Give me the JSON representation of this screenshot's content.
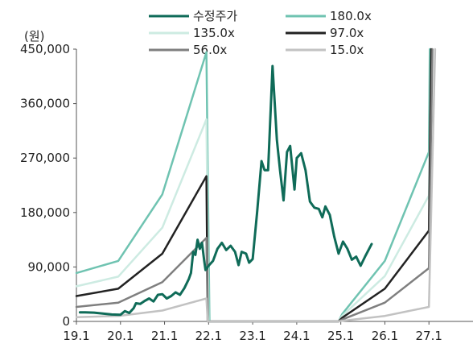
{
  "chart_data": {
    "type": "line",
    "unit_label": "(원)",
    "y_ticks": [
      "450,000",
      "360,000",
      "270,000",
      "180,000",
      "90,000",
      "0"
    ],
    "y_tick_values": [
      450000,
      360000,
      270000,
      180000,
      90000,
      0
    ],
    "x_ticks": [
      "19.1",
      "20.1",
      "21.1",
      "22.1",
      "23.1",
      "24.1",
      "25.1",
      "26.1",
      "27.1"
    ],
    "ylim": [
      0,
      450000
    ],
    "xlim": [
      19.0,
      28.0
    ],
    "legend_position": "top",
    "series": [
      {
        "name": "수정주가",
        "color": "#0f6b58",
        "width": 3,
        "points": [
          [
            19.08,
            15000
          ],
          [
            19.2,
            15000
          ],
          [
            19.4,
            14500
          ],
          [
            19.6,
            13000
          ],
          [
            19.8,
            11500
          ],
          [
            20.0,
            11000
          ],
          [
            20.1,
            17000
          ],
          [
            20.2,
            14000
          ],
          [
            20.3,
            22000
          ],
          [
            20.35,
            30000
          ],
          [
            20.45,
            29000
          ],
          [
            20.55,
            34000
          ],
          [
            20.65,
            38000
          ],
          [
            20.75,
            33000
          ],
          [
            20.85,
            44000
          ],
          [
            20.95,
            45000
          ],
          [
            21.05,
            38000
          ],
          [
            21.15,
            42000
          ],
          [
            21.25,
            48000
          ],
          [
            21.35,
            44000
          ],
          [
            21.45,
            55000
          ],
          [
            21.55,
            70000
          ],
          [
            21.6,
            80000
          ],
          [
            21.65,
            115000
          ],
          [
            21.7,
            110000
          ],
          [
            21.75,
            135000
          ],
          [
            21.8,
            120000
          ],
          [
            21.85,
            130000
          ],
          [
            21.9,
            100000
          ],
          [
            21.93,
            85000
          ],
          [
            22.0,
            92000
          ],
          [
            22.1,
            100000
          ],
          [
            22.2,
            120000
          ],
          [
            22.3,
            130000
          ],
          [
            22.4,
            118000
          ],
          [
            22.5,
            125000
          ],
          [
            22.6,
            115000
          ],
          [
            22.68,
            93000
          ],
          [
            22.75,
            115000
          ],
          [
            22.85,
            112000
          ],
          [
            22.92,
            97000
          ],
          [
            23.0,
            103000
          ],
          [
            23.1,
            180000
          ],
          [
            23.2,
            265000
          ],
          [
            23.27,
            250000
          ],
          [
            23.35,
            250000
          ],
          [
            23.45,
            422000
          ],
          [
            23.55,
            300000
          ],
          [
            23.62,
            250000
          ],
          [
            23.7,
            200000
          ],
          [
            23.78,
            280000
          ],
          [
            23.85,
            290000
          ],
          [
            23.95,
            218000
          ],
          [
            24.0,
            270000
          ],
          [
            24.1,
            278000
          ],
          [
            24.2,
            250000
          ],
          [
            24.3,
            198000
          ],
          [
            24.4,
            188000
          ],
          [
            24.5,
            186000
          ],
          [
            24.58,
            172000
          ],
          [
            24.65,
            190000
          ],
          [
            24.75,
            176000
          ],
          [
            24.85,
            140000
          ],
          [
            24.95,
            112000
          ],
          [
            25.05,
            132000
          ],
          [
            25.15,
            120000
          ],
          [
            25.25,
            102000
          ],
          [
            25.35,
            107000
          ],
          [
            25.45,
            92000
          ],
          [
            25.55,
            107000
          ],
          [
            25.7,
            128000
          ]
        ]
      },
      {
        "name": "180.0x",
        "color": "#6fc3b1",
        "width": 2.5,
        "points": [
          [
            19.0,
            80000
          ],
          [
            19.95,
            100000
          ],
          [
            20.95,
            210000
          ],
          [
            21.95,
            445000
          ],
          [
            22.02,
            0
          ],
          [
            24.95,
            0
          ],
          [
            25.03,
            12000
          ],
          [
            26.0,
            100000
          ],
          [
            27.0,
            280000
          ],
          [
            27.02,
            450000
          ]
        ]
      },
      {
        "name": "135.0x",
        "color": "#cdebe2",
        "width": 2.5,
        "points": [
          [
            19.0,
            58000
          ],
          [
            19.95,
            74000
          ],
          [
            20.95,
            155000
          ],
          [
            21.95,
            334000
          ],
          [
            22.0,
            0
          ],
          [
            24.95,
            0
          ],
          [
            25.03,
            9000
          ],
          [
            26.0,
            75000
          ],
          [
            27.0,
            208000
          ],
          [
            27.05,
            450000
          ]
        ]
      },
      {
        "name": "97.0x",
        "color": "#222222",
        "width": 2.5,
        "points": [
          [
            19.0,
            42000
          ],
          [
            19.95,
            54000
          ],
          [
            20.95,
            112000
          ],
          [
            21.95,
            240000
          ],
          [
            21.98,
            0
          ],
          [
            24.95,
            0
          ],
          [
            25.03,
            6000
          ],
          [
            26.0,
            54000
          ],
          [
            27.0,
            150000
          ],
          [
            27.05,
            450000
          ]
        ]
      },
      {
        "name": "56.0x",
        "color": "#7f7f7f",
        "width": 2.5,
        "points": [
          [
            19.0,
            24000
          ],
          [
            19.95,
            31000
          ],
          [
            20.95,
            65000
          ],
          [
            21.95,
            138000
          ],
          [
            21.98,
            0
          ],
          [
            24.95,
            0
          ],
          [
            25.03,
            3000
          ],
          [
            26.0,
            31000
          ],
          [
            27.0,
            88000
          ],
          [
            27.08,
            450000
          ]
        ]
      },
      {
        "name": "15.0x",
        "color": "#c2c2c2",
        "width": 2.5,
        "points": [
          [
            19.0,
            7000
          ],
          [
            19.95,
            9000
          ],
          [
            20.95,
            18000
          ],
          [
            21.95,
            38000
          ],
          [
            21.98,
            0
          ],
          [
            24.95,
            0
          ],
          [
            25.03,
            1000
          ],
          [
            26.0,
            9000
          ],
          [
            27.0,
            24000
          ],
          [
            27.14,
            450000
          ]
        ]
      }
    ]
  }
}
